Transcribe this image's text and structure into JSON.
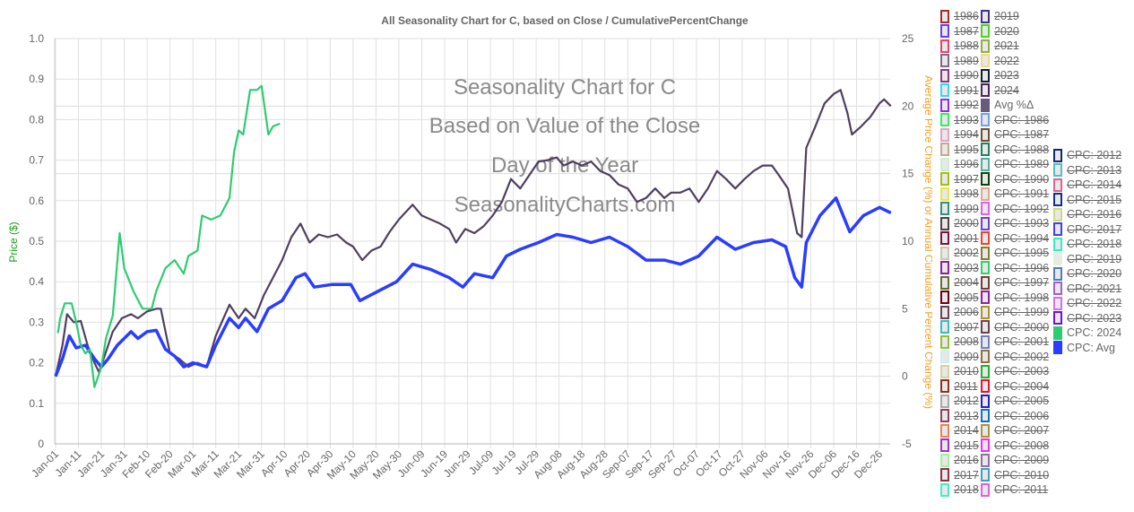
{
  "chart_data": {
    "type": "line",
    "title": "All Seasonality Chart for C, based on Close / CumulativePercentChange",
    "watermark": [
      "Seasonality Chart for C",
      "Based on Value of the Close",
      "Day of the Year",
      "SeasonalityCharts.com"
    ],
    "ylabel_left": "Price ($)",
    "ylabel_right": "Average Price Change (%) or Annual Cumulative Percent Change (%)",
    "ylim_left": [
      0,
      1.0
    ],
    "yticks_left": [
      "0",
      "0.1",
      "0.2",
      "0.3",
      "0.4",
      "0.5",
      "0.6",
      "0.7",
      "0.8",
      "0.9",
      "1.0"
    ],
    "ylim_right": [
      -5,
      25
    ],
    "yticks_right": [
      "-5",
      "0",
      "5",
      "10",
      "15",
      "20",
      "25"
    ],
    "xticks": [
      "Jan-01",
      "Jan-11",
      "Jan-21",
      "Jan-31",
      "Feb-10",
      "Feb-20",
      "Mar-01",
      "Mar-11",
      "Mar-21",
      "Mar-31",
      "Apr-10",
      "Apr-20",
      "Apr-30",
      "May-10",
      "May-20",
      "May-30",
      "Jun-09",
      "Jun-19",
      "Jun-29",
      "Jul-09",
      "Jul-19",
      "Jul-29",
      "Aug-08",
      "Aug-18",
      "Aug-28",
      "Sep-07",
      "Sep-17",
      "Sep-27",
      "Oct-07",
      "Oct-17",
      "Oct-27",
      "Nov-06",
      "Nov-16",
      "Nov-26",
      "Dec-06",
      "Dec-16",
      "Dec-26"
    ],
    "grid": true,
    "legend_position": "right",
    "series": [
      {
        "name": "Avg %Δ",
        "axis": "right",
        "color": "#4f3f60",
        "x": [
          "Jan-01",
          "Jan-04",
          "Jan-06",
          "Jan-09",
          "Jan-12",
          "Jan-15",
          "Jan-18",
          "Jan-20",
          "Jan-22",
          "Jan-26",
          "Jan-30",
          "Feb-03",
          "Feb-06",
          "Feb-10",
          "Feb-14",
          "Feb-16",
          "Feb-20",
          "Feb-24",
          "Feb-28",
          "Mar-03",
          "Mar-07",
          "Mar-11",
          "Mar-17",
          "Mar-21",
          "Mar-24",
          "Mar-28",
          "Apr-01",
          "Apr-05",
          "Apr-09",
          "Apr-13",
          "Apr-17",
          "Apr-21",
          "Apr-25",
          "Apr-29",
          "May-03",
          "May-07",
          "May-10",
          "May-14",
          "May-18",
          "May-22",
          "May-26",
          "May-30",
          "Jun-05",
          "Jun-09",
          "Jun-13",
          "Jun-17",
          "Jun-21",
          "Jun-24",
          "Jun-28",
          "Jul-02",
          "Jul-06",
          "Jul-10",
          "Jul-14",
          "Jul-18",
          "Jul-22",
          "Jul-26",
          "Jul-30",
          "Aug-03",
          "Aug-07",
          "Aug-10",
          "Aug-14",
          "Aug-18",
          "Aug-22",
          "Aug-26",
          "Aug-30",
          "Sep-03",
          "Sep-07",
          "Sep-11",
          "Sep-15",
          "Sep-19",
          "Sep-23",
          "Sep-26",
          "Sep-30",
          "Oct-04",
          "Oct-08",
          "Oct-12",
          "Oct-16",
          "Oct-20",
          "Oct-24",
          "Oct-28",
          "Nov-01",
          "Nov-05",
          "Nov-09",
          "Nov-12",
          "Nov-16",
          "Nov-20",
          "Nov-22",
          "Nov-24",
          "Nov-28",
          "Dec-02",
          "Dec-06",
          "Dec-09",
          "Dec-12",
          "Dec-14",
          "Dec-18",
          "Dec-22",
          "Dec-26",
          "Dec-28",
          "Dec-31"
        ],
        "y": [
          0,
          2.3,
          4.6,
          4.0,
          4.1,
          2.3,
          1.0,
          0.3,
          1.3,
          3.3,
          4.3,
          4.6,
          4.3,
          4.8,
          5.0,
          5.0,
          1.7,
          1.3,
          0.7,
          1.0,
          0.7,
          3.0,
          5.3,
          4.3,
          5.0,
          4.3,
          6.0,
          7.3,
          8.6,
          10.3,
          11.3,
          9.9,
          10.5,
          10.3,
          10.5,
          9.9,
          9.6,
          8.6,
          9.3,
          9.6,
          10.7,
          11.6,
          12.7,
          11.9,
          11.6,
          11.3,
          10.9,
          9.9,
          10.9,
          10.6,
          11.1,
          11.9,
          12.9,
          14.6,
          13.9,
          14.9,
          15.9,
          16.0,
          16.2,
          15.6,
          15.9,
          15.6,
          15.9,
          15.2,
          14.9,
          14.2,
          13.9,
          12.9,
          13.2,
          13.9,
          13.2,
          13.6,
          13.6,
          13.9,
          12.9,
          13.9,
          15.2,
          14.6,
          13.9,
          14.6,
          15.2,
          15.6,
          15.6,
          14.9,
          13.9,
          10.6,
          10.3,
          16.9,
          18.5,
          20.2,
          20.9,
          21.2,
          19.5,
          17.9,
          18.5,
          19.2,
          20.2,
          20.5,
          20.0
        ]
      },
      {
        "name": "CPC: Avg",
        "axis": "right",
        "color": "#2a3dff",
        "x": [
          "Jan-01",
          "Jan-04",
          "Jan-07",
          "Jan-10",
          "Jan-14",
          "Jan-18",
          "Jan-21",
          "Jan-24",
          "Jan-28",
          "Feb-03",
          "Feb-06",
          "Feb-10",
          "Feb-14",
          "Feb-18",
          "Feb-22",
          "Feb-26",
          "Mar-01",
          "Mar-07",
          "Mar-11",
          "Mar-17",
          "Mar-21",
          "Mar-24",
          "Mar-29",
          "Apr-03",
          "Apr-09",
          "Apr-15",
          "Apr-19",
          "Apr-23",
          "May-01",
          "May-09",
          "May-13",
          "May-21",
          "May-29",
          "Jun-05",
          "Jun-13",
          "Jun-21",
          "Jun-27",
          "Jul-02",
          "Jul-10",
          "Jul-16",
          "Jul-22",
          "Jul-30",
          "Aug-07",
          "Aug-14",
          "Aug-22",
          "Aug-30",
          "Sep-07",
          "Sep-15",
          "Sep-23",
          "Sep-30",
          "Oct-08",
          "Oct-16",
          "Oct-24",
          "Nov-01",
          "Nov-09",
          "Nov-15",
          "Nov-19",
          "Nov-22",
          "Nov-24",
          "Nov-30",
          "Dec-07",
          "Dec-13",
          "Dec-19",
          "Dec-26",
          "Dec-31"
        ],
        "y": [
          0,
          1.3,
          3.0,
          2.1,
          2.3,
          1.3,
          0.7,
          1.3,
          2.3,
          3.3,
          2.8,
          3.3,
          3.4,
          2.0,
          1.5,
          0.7,
          1.0,
          0.7,
          2.3,
          4.3,
          3.6,
          4.3,
          3.3,
          5.0,
          5.6,
          7.3,
          7.6,
          6.6,
          6.8,
          6.8,
          5.6,
          6.3,
          7.0,
          8.3,
          7.9,
          7.3,
          6.6,
          7.6,
          7.3,
          8.9,
          9.4,
          9.9,
          10.5,
          10.3,
          9.9,
          10.3,
          9.6,
          8.6,
          8.6,
          8.3,
          8.9,
          10.3,
          9.4,
          9.9,
          10.1,
          9.6,
          7.3,
          6.6,
          9.9,
          11.9,
          13.2,
          10.7,
          11.9,
          12.5,
          12.1
        ]
      },
      {
        "name": "CPC: 2024",
        "axis": "right",
        "color": "#2ecc71",
        "x": [
          "Jan-02",
          "Jan-03",
          "Jan-05",
          "Jan-08",
          "Jan-10",
          "Jan-12",
          "Jan-14",
          "Jan-16",
          "Jan-18",
          "Jan-21",
          "Jan-23",
          "Jan-26",
          "Jan-29",
          "Jan-31",
          "Feb-04",
          "Feb-08",
          "Feb-12",
          "Feb-14",
          "Feb-18",
          "Feb-22",
          "Feb-26",
          "Feb-28",
          "Mar-03",
          "Mar-05",
          "Mar-09",
          "Mar-13",
          "Mar-17",
          "Mar-19",
          "Mar-21",
          "Mar-23",
          "Mar-26",
          "Mar-29",
          "Mar-31",
          "Apr-03",
          "Apr-05",
          "Apr-08"
        ],
        "y": [
          3.2,
          4.3,
          5.4,
          5.4,
          4.0,
          2.3,
          1.7,
          2.0,
          -0.8,
          0.7,
          2.8,
          4.5,
          10.6,
          8.0,
          6.3,
          5.0,
          5.0,
          6.3,
          8.0,
          8.6,
          7.6,
          8.9,
          9.3,
          11.9,
          11.6,
          11.9,
          13.2,
          16.6,
          18.2,
          17.9,
          21.2,
          21.2,
          21.5,
          17.9,
          18.5,
          18.7
        ]
      }
    ]
  },
  "legend": {
    "columns": [
      [
        {
          "label": "1986",
          "color": "#a0302a",
          "hidden": true
        },
        {
          "label": "1987",
          "color": "#6a3cf0",
          "hidden": true
        },
        {
          "label": "1988",
          "color": "#f0406a",
          "hidden": true
        },
        {
          "label": "1989",
          "color": "#806a8a",
          "hidden": true
        },
        {
          "label": "1990",
          "color": "#8a3a80",
          "hidden": true
        },
        {
          "label": "1991",
          "color": "#30d8f0",
          "hidden": true
        },
        {
          "label": "1992",
          "color": "#9030e0",
          "hidden": true
        },
        {
          "label": "1993",
          "color": "#30f060",
          "hidden": true
        },
        {
          "label": "1994",
          "color": "#e8a0c8",
          "hidden": true
        },
        {
          "label": "1995",
          "color": "#c8a888",
          "hidden": true
        },
        {
          "label": "1996",
          "color": "#c8f0d0",
          "hidden": true
        },
        {
          "label": "1997",
          "color": "#a0c010",
          "hidden": true
        },
        {
          "label": "1998",
          "color": "#e8e840",
          "hidden": true
        },
        {
          "label": "1999",
          "color": "#309080",
          "hidden": true
        },
        {
          "label": "2000",
          "color": "#504040",
          "hidden": true
        },
        {
          "label": "2001",
          "color": "#801040",
          "hidden": true
        },
        {
          "label": "2002",
          "color": "#c8c8b0",
          "hidden": true
        },
        {
          "label": "2003",
          "color": "#9020a0",
          "hidden": true
        },
        {
          "label": "2004",
          "color": "#607030",
          "hidden": true
        },
        {
          "label": "2005",
          "color": "#700010",
          "hidden": true
        },
        {
          "label": "2006",
          "color": "#704050",
          "hidden": true
        },
        {
          "label": "2007",
          "color": "#30c0c0",
          "hidden": true
        },
        {
          "label": "2008",
          "color": "#90c030",
          "hidden": true
        },
        {
          "label": "2009",
          "color": "#c8f0f0",
          "hidden": true
        },
        {
          "label": "2010",
          "color": "#d8d0a0",
          "hidden": true
        },
        {
          "label": "2011",
          "color": "#903020",
          "hidden": true
        },
        {
          "label": "2012",
          "color": "#a8a8a8",
          "hidden": true
        },
        {
          "label": "2013",
          "color": "#904060",
          "hidden": true
        },
        {
          "label": "2014",
          "color": "#f08050",
          "hidden": true
        },
        {
          "label": "2015",
          "color": "#a030d0",
          "hidden": true
        },
        {
          "label": "2016",
          "color": "#a0f0a0",
          "hidden": true
        },
        {
          "label": "2017",
          "color": "#903040",
          "hidden": true
        },
        {
          "label": "2018",
          "color": "#40f0c0",
          "hidden": true
        }
      ],
      [
        {
          "label": "2019",
          "color": "#403090",
          "hidden": true
        },
        {
          "label": "2020",
          "color": "#50d020",
          "hidden": true
        },
        {
          "label": "2021",
          "color": "#90b040",
          "hidden": true
        },
        {
          "label": "2022",
          "color": "#f0d890",
          "hidden": true
        },
        {
          "label": "2023",
          "color": "#102030",
          "hidden": true
        },
        {
          "label": "2024",
          "color": "#502060",
          "hidden": true
        },
        {
          "label": "Avg %Δ",
          "color": "#6a5a7a",
          "hidden": false
        },
        {
          "label": "CPC: 1986",
          "color": "#70a0f0",
          "hidden": true
        },
        {
          "label": "CPC: 1987",
          "color": "#705030",
          "hidden": true
        },
        {
          "label": "CPC: 1988",
          "color": "#208060",
          "hidden": true
        },
        {
          "label": "CPC: 1989",
          "color": "#50b0a0",
          "hidden": true
        },
        {
          "label": "CPC: 1990",
          "color": "#104010",
          "hidden": true
        },
        {
          "label": "CPC: 1991",
          "color": "#e0a890",
          "hidden": true
        },
        {
          "label": "CPC: 1992",
          "color": "#e060f0",
          "hidden": true
        },
        {
          "label": "CPC: 1993",
          "color": "#7040d0",
          "hidden": true
        },
        {
          "label": "CPC: 1994",
          "color": "#f04030",
          "hidden": true
        },
        {
          "label": "CPC: 1995",
          "color": "#808030",
          "hidden": true
        },
        {
          "label": "CPC: 1996",
          "color": "#30d070",
          "hidden": true
        },
        {
          "label": "CPC: 1997",
          "color": "#704030",
          "hidden": true
        },
        {
          "label": "CPC: 1998",
          "color": "#9020a0",
          "hidden": true
        },
        {
          "label": "CPC: 1999",
          "color": "#b09030",
          "hidden": true
        },
        {
          "label": "CPC: 2000",
          "color": "#704050",
          "hidden": true
        },
        {
          "label": "CPC: 2001",
          "color": "#7080c0",
          "hidden": true
        },
        {
          "label": "CPC: 2002",
          "color": "#907040",
          "hidden": true
        },
        {
          "label": "CPC: 2003",
          "color": "#20b030",
          "hidden": true
        },
        {
          "label": "CPC: 2004",
          "color": "#f01030",
          "hidden": true
        },
        {
          "label": "CPC: 2005",
          "color": "#2020c0",
          "hidden": true
        },
        {
          "label": "CPC: 2006",
          "color": "#1070d0",
          "hidden": true
        },
        {
          "label": "CPC: 2007",
          "color": "#b09040",
          "hidden": true
        },
        {
          "label": "CPC: 2008",
          "color": "#f030f0",
          "hidden": true
        },
        {
          "label": "CPC: 2009",
          "color": "#9070a0",
          "hidden": true
        },
        {
          "label": "CPC: 2010",
          "color": "#40a0c0",
          "hidden": true
        },
        {
          "label": "CPC: 2011",
          "color": "#e060e0",
          "hidden": true
        }
      ],
      [
        {
          "label": "CPC: 2012",
          "color": "#102870",
          "hidden": true
        },
        {
          "label": "CPC: 2013",
          "color": "#50c0c0",
          "hidden": true
        },
        {
          "label": "CPC: 2014",
          "color": "#e06090",
          "hidden": true
        },
        {
          "label": "CPC: 2015",
          "color": "#103090",
          "hidden": true
        },
        {
          "label": "CPC: 2016",
          "color": "#d0d880",
          "hidden": true
        },
        {
          "label": "CPC: 2017",
          "color": "#4040f0",
          "hidden": true
        },
        {
          "label": "CPC: 2018",
          "color": "#30f0c0",
          "hidden": true
        },
        {
          "label": "CPC: 2019",
          "color": "#e0f0e0",
          "hidden": true
        },
        {
          "label": "CPC: 2020",
          "color": "#5080b0",
          "hidden": true
        },
        {
          "label": "CPC: 2021",
          "color": "#a060d0",
          "hidden": true
        },
        {
          "label": "CPC: 2022",
          "color": "#d070f0",
          "hidden": true
        },
        {
          "label": "CPC: 2023",
          "color": "#7010e0",
          "hidden": true
        },
        {
          "label": "CPC: 2024",
          "color": "#2ecc71",
          "hidden": false
        },
        {
          "label": "CPC: Avg",
          "color": "#2a3dff",
          "hidden": false
        }
      ]
    ]
  },
  "colors": {
    "left_axis_label": "#1a9a1a",
    "right_axis_label": "#f0a020",
    "text": "#666666",
    "watermark": "#8a8a8a"
  }
}
